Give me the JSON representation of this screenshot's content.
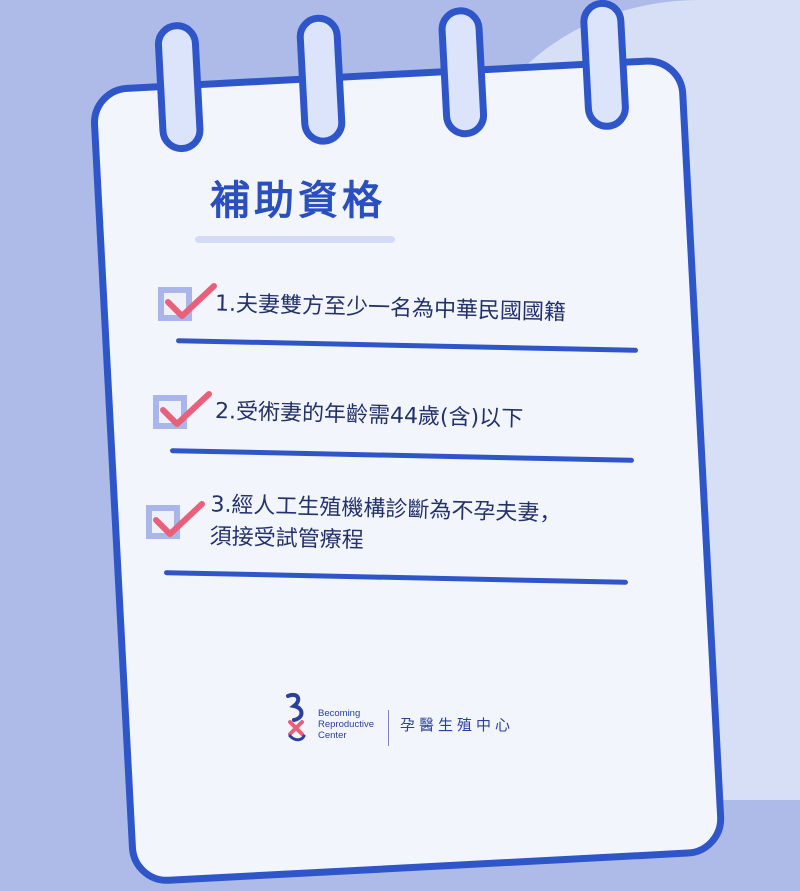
{
  "title": "補助資格",
  "items": [
    {
      "text_lines": [
        "1.夫妻雙方至少一名為中華民國國籍"
      ],
      "checked": true
    },
    {
      "text_lines": [
        "2.受術妻的年齡需44歲(含)以下"
      ],
      "checked": true
    },
    {
      "text_lines": [
        "3.經人工生殖機構診斷為不孕夫妻，",
        "須接受試管療程"
      ],
      "checked": true
    }
  ],
  "logo": {
    "name_en_lines": [
      "Becoming",
      "Reproductive",
      "Center"
    ],
    "name_zh": "孕醫生殖中心"
  },
  "colors": {
    "background": "#aebbe9",
    "paper": "#f3f5fd",
    "accent_blue": "#2f56c9",
    "checkmark": "#e8607a",
    "checkbox": "#a9b6ec",
    "text": "#24326b"
  },
  "icons": [
    "binder-ring-icon",
    "checkbox-icon",
    "checkmark-icon",
    "logo-icon"
  ]
}
